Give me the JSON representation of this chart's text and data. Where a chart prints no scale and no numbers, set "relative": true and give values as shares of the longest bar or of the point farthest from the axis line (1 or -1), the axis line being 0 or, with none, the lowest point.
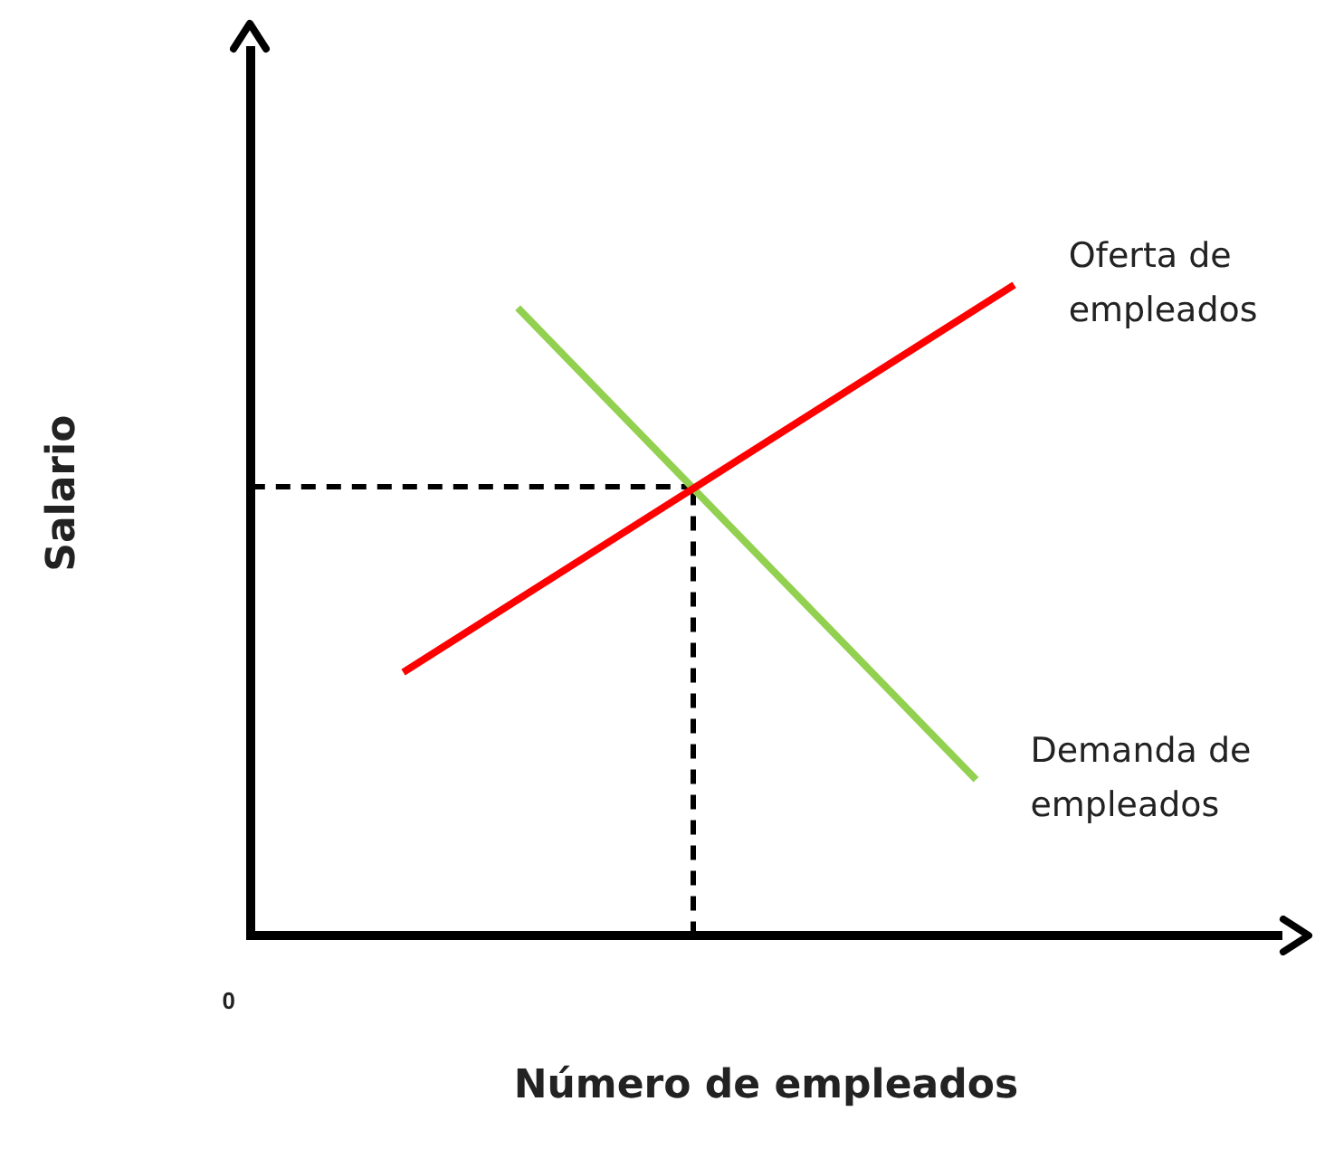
{
  "chart_data": {
    "type": "line",
    "relative": true,
    "xlabel": "Número de empleados",
    "ylabel": "Salario",
    "legend": false,
    "marker": "none",
    "categories": [
      null,
      null,
      null,
      null,
      null,
      null,
      null,
      null,
      null,
      null,
      null,
      null,
      null,
      null,
      null,
      null,
      null,
      null,
      null,
      null,
      null,
      null,
      null,
      null,
      null,
      null,
      null,
      null
    ],
    "series": [
      {
        "color": "#ff0000",
        "values": [
          null,
          null,
          null,
          null,
          0.405,
          null,
          null,
          null,
          null,
          null,
          null,
          null,
          null,
          null,
          null,
          null,
          null,
          null,
          null,
          null,
          1.0,
          null,
          null,
          null,
          null,
          null,
          null,
          null
        ]
      },
      {
        "color": "#92d050",
        "values": [
          null,
          null,
          null,
          null,
          null,
          null,
          null,
          0.965,
          null,
          null,
          null,
          null,
          null,
          null,
          null,
          null,
          null,
          null,
          null,
          0.24,
          null,
          null,
          null,
          null,
          null,
          null,
          null,
          null
        ]
      }
    ],
    "ref_lines": [
      {
        "axis": "y",
        "value": 0.69,
        "color": "#000000",
        "line_style": "dashed"
      }
    ],
    "annotations": [
      "Oferta de empleados",
      "Demanda de empleados",
      "0"
    ]
  }
}
